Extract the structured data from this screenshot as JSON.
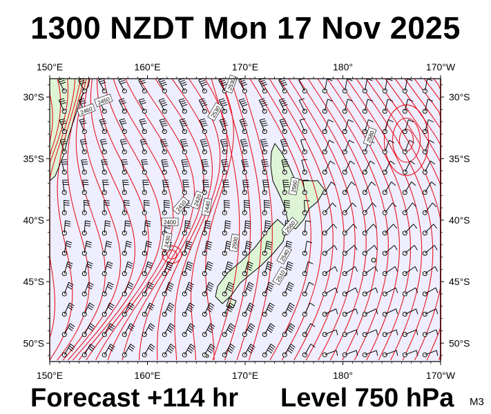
{
  "title": "1300 NZDT Mon 17 Nov 2025",
  "forecast_label": "Forecast +114 hr",
  "level_label": "Level 750 hPa",
  "model_code": "M3",
  "map": {
    "lon_range": [
      150,
      190
    ],
    "lat_range": [
      -51.5,
      -28.5
    ],
    "lon_ticks": [
      {
        "lon": 150,
        "label": "150°E"
      },
      {
        "lon": 160,
        "label": "160°E"
      },
      {
        "lon": 170,
        "label": "170°E"
      },
      {
        "lon": 180,
        "label": "180°"
      },
      {
        "lon": 190,
        "label": "170°W"
      }
    ],
    "lat_ticks": [
      {
        "lat": -30,
        "label": "30°S"
      },
      {
        "lat": -35,
        "label": "35°S"
      },
      {
        "lat": -40,
        "label": "40°S"
      },
      {
        "lat": -45,
        "label": "45°S"
      },
      {
        "lat": -50,
        "label": "50°S"
      }
    ],
    "contour_labels": [
      "2450",
      "2460",
      "2530",
      "2410",
      "2400",
      "2430",
      "2420",
      "2440",
      "2500",
      "2530",
      "2580",
      "2560",
      "2540",
      "2510",
      "2560"
    ],
    "colors": {
      "ocean": "#eeeeff",
      "land": "#ddf5d5",
      "contour": "#e8141c",
      "coast": "#000000",
      "wind": "#000000"
    }
  }
}
